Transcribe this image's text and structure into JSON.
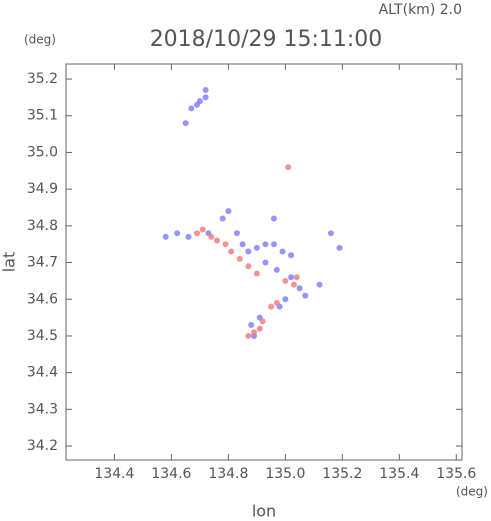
{
  "chart_data": {
    "type": "scatter",
    "title": "2018/10/29 15:11:00",
    "subtitle": "ALT(km) 2.0",
    "y_unit": "(deg)",
    "x_unit": "(deg)",
    "xlabel": "lon",
    "ylabel": "lat",
    "xlim": [
      134.23,
      135.62
    ],
    "ylim": [
      34.162,
      35.241
    ],
    "xticks": [
      134.4,
      134.6,
      134.8,
      {
        "value": 135,
        "label": "135.0"
      },
      135.2,
      135.4,
      135.6
    ],
    "yticks": [
      34.2,
      34.3,
      34.4,
      34.5,
      34.6,
      34.7,
      34.8,
      34.9,
      {
        "value": 35,
        "label": "35.0"
      },
      35.1,
      35.2
    ],
    "series": [
      {
        "color": "#7b7bff",
        "x": [
          134.67,
          134.69,
          134.7,
          134.72,
          134.72,
          134.65,
          134.58,
          134.62,
          134.66,
          134.73,
          134.78,
          134.8,
          134.83,
          134.85,
          134.87,
          134.9,
          134.93,
          134.96,
          134.99,
          134.93,
          134.97,
          135.02,
          135.05,
          135.07,
          134.96,
          135.19,
          135.16,
          135.12,
          135.02,
          134.88,
          134.91,
          134.89,
          135.0,
          134.98
        ],
        "values": [
          35.12,
          35.13,
          35.14,
          35.15,
          35.17,
          35.08,
          34.77,
          34.78,
          34.77,
          34.78,
          34.82,
          34.84,
          34.78,
          34.75,
          34.73,
          34.74,
          34.75,
          34.75,
          34.73,
          34.7,
          34.68,
          34.66,
          34.63,
          34.61,
          34.82,
          34.74,
          34.78,
          34.64,
          34.72,
          34.53,
          34.55,
          34.5,
          34.6,
          34.58
        ]
      },
      {
        "color": "#f07878",
        "x": [
          135.01,
          134.71,
          134.69,
          134.74,
          134.76,
          134.79,
          134.81,
          134.84,
          134.87,
          134.9,
          135.0,
          135.04,
          135.03,
          134.97,
          134.95,
          134.92,
          134.89,
          134.87,
          134.91
        ],
        "values": [
          34.96,
          34.79,
          34.78,
          34.77,
          34.76,
          34.75,
          34.73,
          34.71,
          34.69,
          34.67,
          34.65,
          34.66,
          34.64,
          34.59,
          34.58,
          34.54,
          34.51,
          34.5,
          34.52
        ]
      }
    ]
  }
}
